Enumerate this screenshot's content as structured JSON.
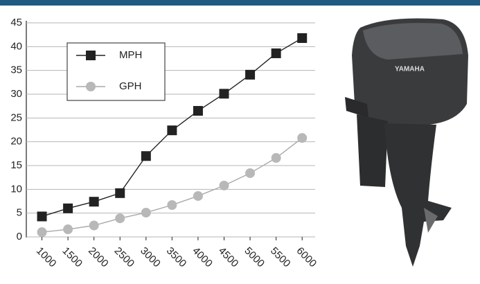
{
  "chart_data": {
    "type": "line",
    "x": [
      1000,
      1500,
      2000,
      2500,
      3000,
      3500,
      4000,
      4500,
      5000,
      5500,
      6000
    ],
    "series": [
      {
        "name": "MPH",
        "color": "#222222",
        "marker": "square",
        "values": [
          4.3,
          6.0,
          7.4,
          9.2,
          17.0,
          22.4,
          26.5,
          30.1,
          34.1,
          38.6,
          41.8
        ]
      },
      {
        "name": "GPH",
        "color": "#b8b8b8",
        "marker": "circle",
        "values": [
          1.0,
          1.6,
          2.4,
          3.9,
          5.1,
          6.7,
          8.6,
          10.8,
          13.4,
          16.6,
          20.8
        ]
      }
    ],
    "xlim": [
      700,
      6250
    ],
    "xticks": [
      1000,
      1500,
      2000,
      2500,
      3000,
      3500,
      4000,
      4500,
      5000,
      5500,
      6000
    ],
    "ylim": [
      0,
      45
    ],
    "yticks": [
      0,
      5,
      10,
      15,
      20,
      25,
      30,
      35,
      40,
      45
    ],
    "grid": true,
    "legend": "upper left"
  },
  "image": {
    "brand": "YAMAHA"
  }
}
